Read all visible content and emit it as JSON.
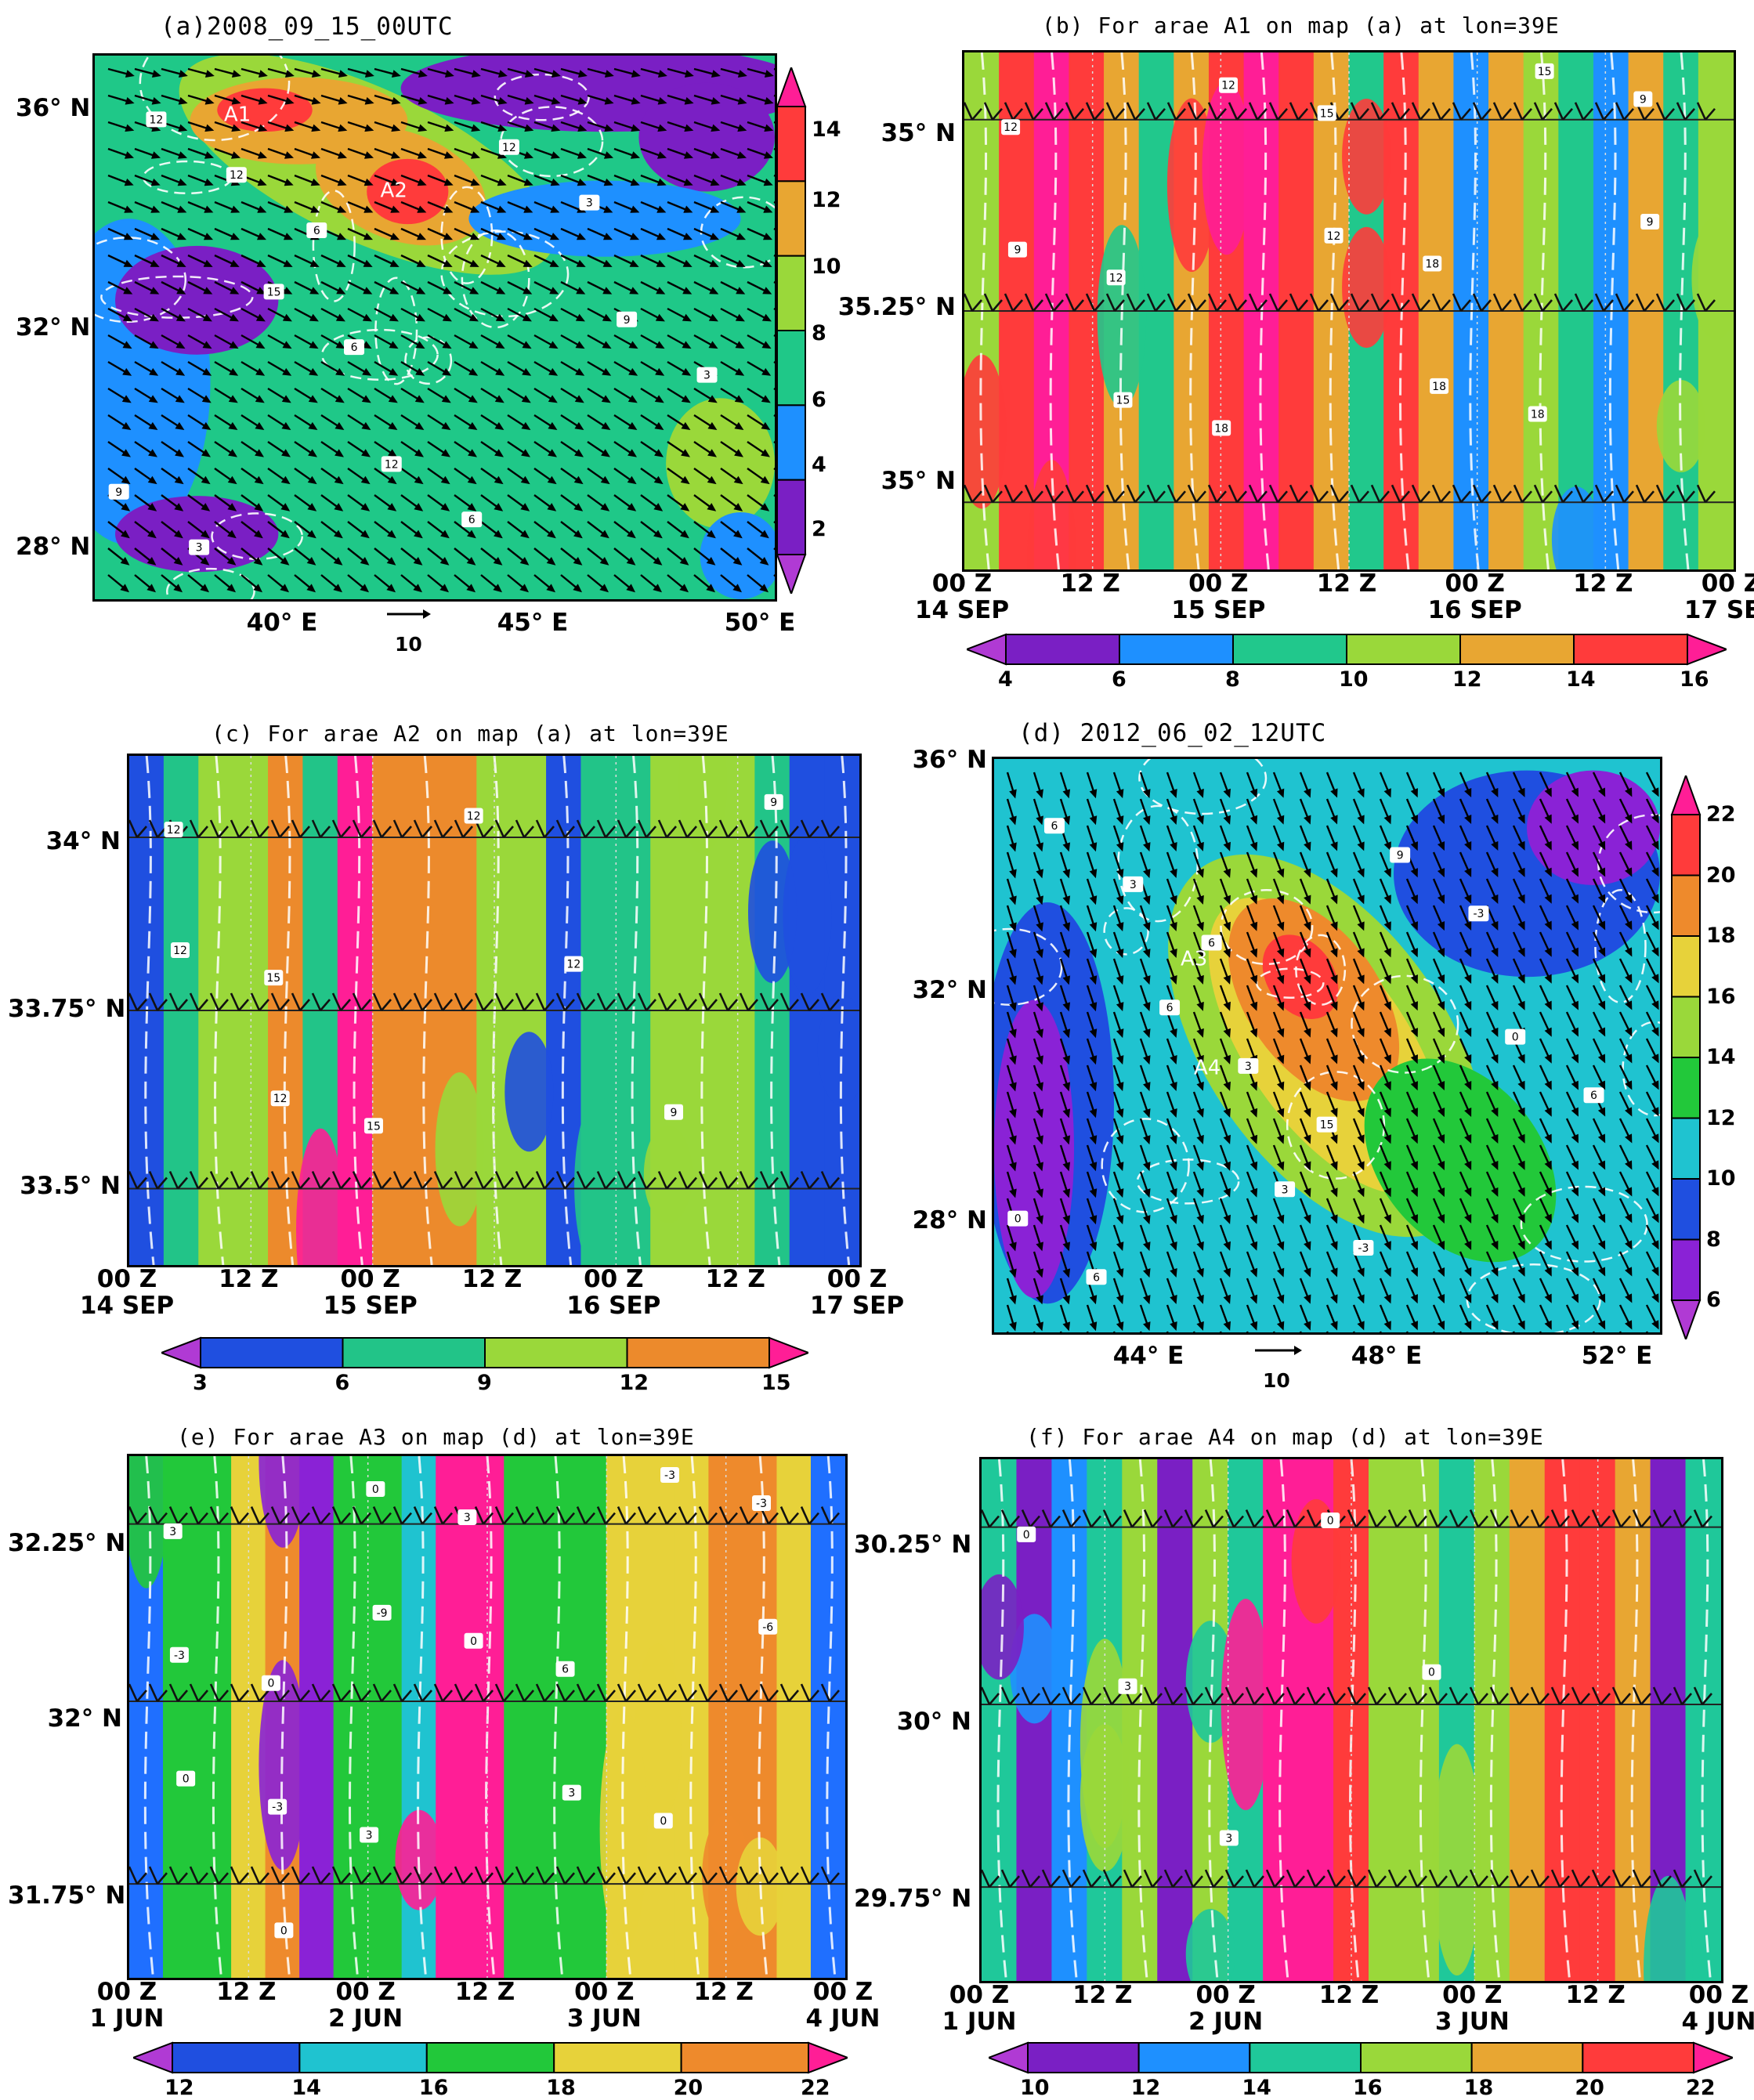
{
  "figure": "Six-panel meteorological figure: wind barbs/vectors over shaded fields",
  "chart_data": [
    {
      "id": "a",
      "type": "heatmap",
      "title": "(a)2008_09_15_00UTC",
      "y_ticks": [
        "36° N",
        "32° N",
        "28° N"
      ],
      "x_ticks": [
        "40° E",
        "45° E",
        "50° E"
      ],
      "ref_vector": "10",
      "colorbar": {
        "labels": [
          "14",
          "12",
          "10",
          "8",
          "6",
          "4",
          "2"
        ],
        "orientation": "vertical"
      },
      "colors": [
        "#7b1fbe",
        "#1e90ff",
        "#3cc7a0",
        "#1fd17c",
        "#9acd32",
        "#e8a33b",
        "#ff3a3a",
        "#ff1493"
      ],
      "annotations": [
        "A1",
        "A2"
      ],
      "contour_labels": [
        "12",
        "15",
        "12",
        "12",
        "9",
        "9",
        "12",
        "6",
        "6",
        "3",
        "3",
        "3",
        "6"
      ]
    },
    {
      "id": "b",
      "type": "heatmap",
      "title": "(b) For arae A1 on map (a) at lon=39E",
      "y_ticks": [
        "35° N",
        "35.25° N",
        "35° N"
      ],
      "x_ticks": [
        [
          "00 Z",
          "14 SEP"
        ],
        [
          "12 Z",
          ""
        ],
        [
          "00 Z",
          "15 SEP"
        ],
        [
          "12 Z",
          ""
        ],
        [
          "00 Z",
          "16 SEP"
        ],
        [
          "12 Z",
          ""
        ],
        [
          "00 Z",
          "17 SEP"
        ]
      ],
      "colorbar": {
        "labels": [
          "4",
          "6",
          "8",
          "10",
          "12",
          "14",
          "16"
        ],
        "orientation": "horizontal"
      },
      "bands": [
        10,
        14,
        16,
        15,
        12,
        8,
        12,
        14,
        18,
        15,
        12,
        9,
        15,
        12,
        6,
        12,
        11,
        8,
        6,
        12,
        9,
        10
      ],
      "contour_labels": [
        "12",
        "12",
        "18",
        "15",
        "18",
        "18",
        "9",
        "9",
        "15",
        "12",
        "12",
        "18",
        "15",
        "9"
      ]
    },
    {
      "id": "c",
      "type": "heatmap",
      "title": "(c) For arae A2 on map (a) at lon=39E",
      "y_ticks": [
        "34° N",
        "33.75° N",
        "33.5° N"
      ],
      "x_ticks": [
        [
          "00 Z",
          "14 SEP"
        ],
        [
          "12 Z",
          ""
        ],
        [
          "00 Z",
          "15 SEP"
        ],
        [
          "12 Z",
          ""
        ],
        [
          "00 Z",
          "16 SEP"
        ],
        [
          "12 Z",
          ""
        ],
        [
          "00 Z",
          "17 SEP"
        ]
      ],
      "colorbar": {
        "labels": [
          "3",
          "6",
          "9",
          "12",
          "15"
        ],
        "orientation": "horizontal"
      },
      "bands": [
        5,
        8,
        10,
        9,
        12,
        8,
        16,
        13,
        13,
        12,
        10,
        11,
        4,
        6,
        7,
        9,
        10,
        11,
        8,
        5,
        5
      ],
      "contour_labels": [
        "12",
        "15",
        "15",
        "12",
        "12",
        "9",
        "9",
        "12",
        "12"
      ]
    },
    {
      "id": "d",
      "type": "heatmap",
      "title": "(d) 2012_06_02_12UTC",
      "y_ticks": [
        "36° N",
        "32° N",
        "28° N"
      ],
      "x_ticks": [
        "44° E",
        "48° E",
        "52° E"
      ],
      "ref_vector": "10",
      "colorbar": {
        "labels": [
          "22",
          "20",
          "18",
          "16",
          "14",
          "12",
          "10",
          "8",
          "6"
        ],
        "orientation": "vertical"
      },
      "annotations": [
        "A3",
        "A4"
      ],
      "contour_labels": [
        "6",
        "6",
        "3",
        "9",
        "0",
        "0",
        "3",
        "3",
        "-3",
        "-3",
        "6",
        "6",
        "6",
        "15"
      ]
    },
    {
      "id": "e",
      "type": "heatmap",
      "title": "(e)  For arae A3 on map (d) at lon=39E",
      "y_ticks": [
        "32.25° N",
        "32° N",
        "31.75° N"
      ],
      "x_ticks": [
        [
          "00 Z",
          "1 JUN"
        ],
        [
          "12 Z",
          ""
        ],
        [
          "00 Z",
          "2 JUN"
        ],
        [
          "12 Z",
          ""
        ],
        [
          "00 Z",
          "3 JUN"
        ],
        [
          "12 Z",
          ""
        ],
        [
          "00 Z",
          "4 JUN"
        ]
      ],
      "colorbar": {
        "labels": [
          "12",
          "14",
          "16",
          "18",
          "20",
          "22"
        ],
        "orientation": "horizontal"
      },
      "bands": [
        14,
        16,
        17,
        19,
        20,
        13,
        16,
        17,
        15,
        23,
        22,
        16,
        16,
        17,
        18,
        18,
        19,
        20,
        21,
        19,
        14
      ],
      "contour_labels": [
        "3",
        "0",
        "3",
        "3",
        "6",
        "0",
        "-3",
        "-3",
        "-3",
        "0",
        "0",
        "3",
        "-3",
        "-6",
        "0",
        "0",
        "-9"
      ]
    },
    {
      "id": "f",
      "type": "heatmap",
      "title": "(f)  For arae A4 on map (d) at lon=39E",
      "y_ticks": [
        "30.25° N",
        "30° N",
        "29.75° N"
      ],
      "x_ticks": [
        [
          "00 Z",
          "1 JUN"
        ],
        [
          "12 Z",
          ""
        ],
        [
          "00 Z",
          "2 JUN"
        ],
        [
          "12 Z",
          ""
        ],
        [
          "00 Z",
          "3 JUN"
        ],
        [
          "12 Z",
          ""
        ],
        [
          "00 Z",
          "4 JUN"
        ]
      ],
      "colorbar": {
        "labels": [
          "10",
          "12",
          "14",
          "16",
          "18",
          "20",
          "22"
        ],
        "orientation": "horizontal"
      },
      "bands": [
        14,
        11,
        13,
        15,
        17,
        11,
        17,
        14,
        22,
        23,
        21,
        17,
        16,
        15,
        17,
        18,
        20,
        21,
        19,
        10,
        14
      ],
      "contour_labels": [
        "0",
        "3",
        "3",
        "0",
        "0"
      ]
    }
  ]
}
